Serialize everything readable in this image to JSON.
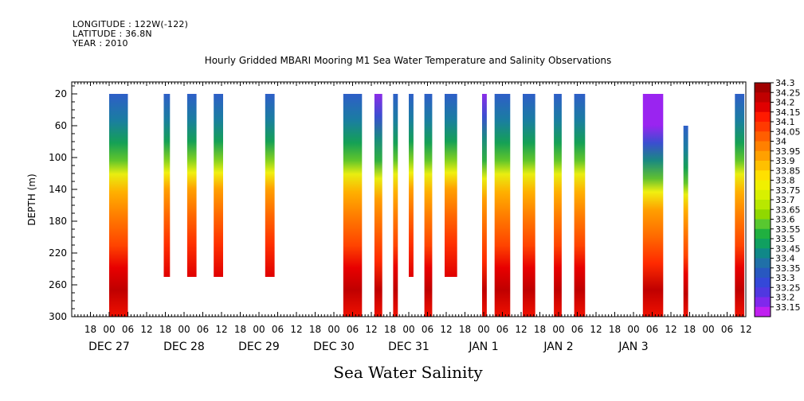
{
  "header": {
    "longitude": "LONGITUDE : 122W(-122)",
    "latitude": "LATITUDE : 36.8N",
    "year": "YEAR : 2010",
    "title": "Hourly Gridded MBARI Mooring M1 Sea Water Temperature and Salinity Observations"
  },
  "chart_data": {
    "type": "heatmap",
    "title": "Hourly Gridded MBARI Mooring M1 Sea Water Temperature and Salinity Observations",
    "xlabel": "Sea Water Salinity",
    "ylabel": "DEPTH (m)",
    "y_ticks": [
      20,
      60,
      100,
      140,
      180,
      220,
      260,
      300
    ],
    "y_range": [
      300,
      5
    ],
    "x_range_hours": [
      0,
      216
    ],
    "x_start": "2010-12-26 12:00",
    "x_hour_ticks": [
      "18",
      "00",
      "06",
      "12",
      "18",
      "00",
      "06",
      "12",
      "18",
      "00",
      "06",
      "12",
      "18",
      "00",
      "06",
      "12",
      "18",
      "00",
      "06",
      "12",
      "18",
      "00",
      "06",
      "12",
      "18",
      "00",
      "06",
      "12",
      "18",
      "00",
      "06",
      "12",
      "18",
      "00",
      "06",
      "12"
    ],
    "x_day_labels": [
      "DEC 27",
      "DEC 28",
      "DEC 29",
      "DEC 30",
      "DEC 31",
      "JAN  1",
      "JAN  2",
      "JAN  3"
    ],
    "colorbar_levels": [
      "34.3",
      "34.25",
      "34.2",
      "34.15",
      "34.1",
      "34.05",
      "34",
      "33.95",
      "33.9",
      "33.85",
      "33.8",
      "33.75",
      "33.7",
      "33.65",
      "33.6",
      "33.55",
      "33.5",
      "33.45",
      "33.4",
      "33.35",
      "33.3",
      "33.25",
      "33.2",
      "33.15"
    ],
    "colorbar_colors": [
      "#a00000",
      "#c00000",
      "#e00000",
      "#ff1a00",
      "#ff3a00",
      "#ff5e00",
      "#ff8000",
      "#ffa000",
      "#ffc000",
      "#ffe000",
      "#f0f000",
      "#d8f000",
      "#b8e800",
      "#90d800",
      "#58c830",
      "#20b040",
      "#10a060",
      "#108888",
      "#2070a8",
      "#2858c0",
      "#3448d8",
      "#5038e0",
      "#8028ec",
      "#c020f0"
    ],
    "observation_columns": [
      {
        "x_start": 12.0,
        "x_end": 18.0,
        "top": 20,
        "bottom": 300,
        "pattern": "deep"
      },
      {
        "x_start": 29.5,
        "x_end": 31.5,
        "top": 20,
        "bottom": 250,
        "pattern": "mid"
      },
      {
        "x_start": 37.0,
        "x_end": 40.0,
        "top": 20,
        "bottom": 250,
        "pattern": "mid"
      },
      {
        "x_start": 45.5,
        "x_end": 48.5,
        "top": 20,
        "bottom": 250,
        "pattern": "mid"
      },
      {
        "x_start": 62.0,
        "x_end": 65.0,
        "top": 20,
        "bottom": 250,
        "pattern": "mid"
      },
      {
        "x_start": 87.0,
        "x_end": 93.0,
        "top": 20,
        "bottom": 300,
        "pattern": "deep"
      },
      {
        "x_start": 97.0,
        "x_end": 99.5,
        "top": 20,
        "bottom": 300,
        "pattern": "purple"
      },
      {
        "x_start": 103.0,
        "x_end": 104.5,
        "top": 20,
        "bottom": 300,
        "pattern": "deep"
      },
      {
        "x_start": 108.0,
        "x_end": 109.5,
        "top": 20,
        "bottom": 250,
        "pattern": "mid"
      },
      {
        "x_start": 113.0,
        "x_end": 115.5,
        "top": 20,
        "bottom": 300,
        "pattern": "deep"
      },
      {
        "x_start": 119.5,
        "x_end": 123.5,
        "top": 20,
        "bottom": 250,
        "pattern": "mid"
      },
      {
        "x_start": 131.5,
        "x_end": 133.0,
        "top": 20,
        "bottom": 300,
        "pattern": "purple"
      },
      {
        "x_start": 135.5,
        "x_end": 140.5,
        "top": 20,
        "bottom": 300,
        "pattern": "deep"
      },
      {
        "x_start": 144.5,
        "x_end": 148.5,
        "top": 20,
        "bottom": 300,
        "pattern": "deep"
      },
      {
        "x_start": 154.5,
        "x_end": 157.0,
        "top": 20,
        "bottom": 300,
        "pattern": "deep"
      },
      {
        "x_start": 161.0,
        "x_end": 164.5,
        "top": 20,
        "bottom": 300,
        "pattern": "deep"
      },
      {
        "x_start": 183.0,
        "x_end": 189.5,
        "top": 20,
        "bottom": 300,
        "pattern": "purpletop"
      },
      {
        "x_start": 196.0,
        "x_end": 197.5,
        "top": 60,
        "bottom": 300,
        "pattern": "deep"
      },
      {
        "x_start": 212.5,
        "x_end": 215.5,
        "top": 20,
        "bottom": 300,
        "pattern": "deep"
      }
    ]
  }
}
